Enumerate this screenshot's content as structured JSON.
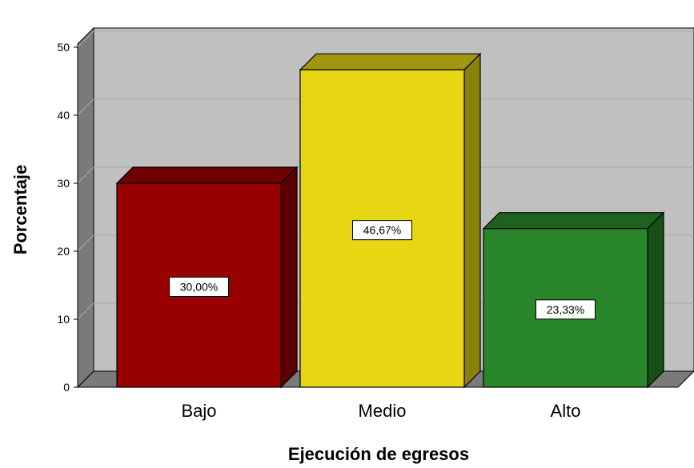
{
  "chart_data": {
    "type": "bar",
    "categories": [
      "Bajo",
      "Medio",
      "Alto"
    ],
    "values": [
      30.0,
      46.67,
      23.33
    ],
    "data_labels": [
      "30,00%",
      "46,67%",
      "23,33%"
    ],
    "colors": [
      "#990000",
      "#e6d614",
      "#2a862a"
    ],
    "side_colors": [
      "#5c0000",
      "#8a800c",
      "#174f17"
    ],
    "top_colors": [
      "#6e0000",
      "#a19610",
      "#1e621e"
    ],
    "xlabel": "Ejecución de egresos",
    "ylabel": "Porcentaje",
    "ylim": [
      0,
      50
    ],
    "yticks": [
      0,
      10,
      20,
      30,
      40,
      50
    ],
    "ytick_labels": [
      "0",
      "10",
      "20",
      "30",
      "40",
      "50"
    ],
    "grid": true,
    "style": "3d-bar",
    "background_color": "#c0c0c0",
    "gridline_color": "#a8a8a8",
    "wall_color": "#7a7a7a"
  }
}
